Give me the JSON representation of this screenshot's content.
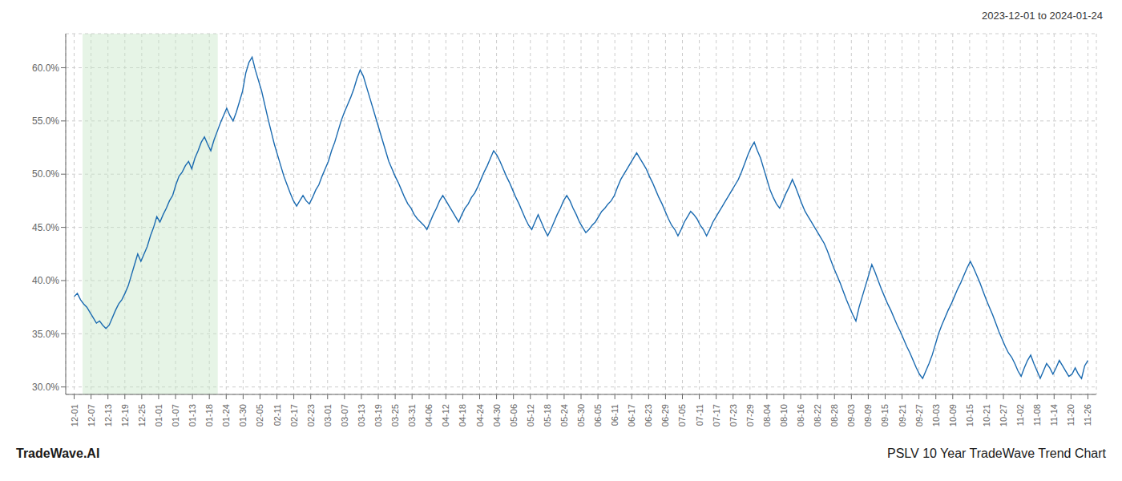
{
  "chart_data": {
    "type": "line",
    "title": "PSLV 10 Year TradeWave Trend Chart",
    "subtitle": "2023-12-01 to 2024-01-24",
    "annotations": [
      "TradeWave.AI"
    ],
    "color": "#1a6ab0",
    "grid": true,
    "shaded_range": {
      "start": "12-07",
      "end": "01-18",
      "color": "#c8e6c8"
    },
    "xlim": [
      -0.5,
      60.5
    ],
    "xticks": [
      {
        "value": 0,
        "label": "12-01"
      },
      {
        "value": 1,
        "label": "12-07"
      },
      {
        "value": 2,
        "label": "12-13"
      },
      {
        "value": 3,
        "label": "12-19"
      },
      {
        "value": 4,
        "label": "12-25"
      },
      {
        "value": 5,
        "label": "01-01"
      },
      {
        "value": 6,
        "label": "01-07"
      },
      {
        "value": 7,
        "label": "01-13"
      },
      {
        "value": 8,
        "label": "01-18"
      },
      {
        "value": 9,
        "label": "01-24"
      },
      {
        "value": 10,
        "label": "01-30"
      },
      {
        "value": 11,
        "label": "02-05"
      },
      {
        "value": 12,
        "label": "02-11"
      },
      {
        "value": 13,
        "label": "02-17"
      },
      {
        "value": 14,
        "label": "02-23"
      },
      {
        "value": 15,
        "label": "03-01"
      },
      {
        "value": 16,
        "label": "03-07"
      },
      {
        "value": 17,
        "label": "03-13"
      },
      {
        "value": 18,
        "label": "03-19"
      },
      {
        "value": 19,
        "label": "03-25"
      },
      {
        "value": 20,
        "label": "03-31"
      },
      {
        "value": 21,
        "label": "04-06"
      },
      {
        "value": 22,
        "label": "04-12"
      },
      {
        "value": 23,
        "label": "04-18"
      },
      {
        "value": 24,
        "label": "04-24"
      },
      {
        "value": 25,
        "label": "04-30"
      },
      {
        "value": 26,
        "label": "05-06"
      },
      {
        "value": 27,
        "label": "05-12"
      },
      {
        "value": 28,
        "label": "05-18"
      },
      {
        "value": 29,
        "label": "05-24"
      },
      {
        "value": 30,
        "label": "05-30"
      },
      {
        "value": 31,
        "label": "06-05"
      },
      {
        "value": 32,
        "label": "06-11"
      },
      {
        "value": 33,
        "label": "06-17"
      },
      {
        "value": 34,
        "label": "06-23"
      },
      {
        "value": 35,
        "label": "06-29"
      },
      {
        "value": 36,
        "label": "07-05"
      },
      {
        "value": 37,
        "label": "07-11"
      },
      {
        "value": 38,
        "label": "07-17"
      },
      {
        "value": 39,
        "label": "07-23"
      },
      {
        "value": 40,
        "label": "07-29"
      },
      {
        "value": 41,
        "label": "08-04"
      },
      {
        "value": 42,
        "label": "08-10"
      },
      {
        "value": 43,
        "label": "08-16"
      },
      {
        "value": 44,
        "label": "08-22"
      },
      {
        "value": 45,
        "label": "08-28"
      },
      {
        "value": 46,
        "label": "09-03"
      },
      {
        "value": 47,
        "label": "09-09"
      },
      {
        "value": 48,
        "label": "09-15"
      },
      {
        "value": 49,
        "label": "09-21"
      },
      {
        "value": 50,
        "label": "09-27"
      },
      {
        "value": 51,
        "label": "10-03"
      },
      {
        "value": 52,
        "label": "10-09"
      },
      {
        "value": 53,
        "label": "10-15"
      },
      {
        "value": 54,
        "label": "10-21"
      },
      {
        "value": 55,
        "label": "10-27"
      },
      {
        "value": 56,
        "label": "11-02"
      },
      {
        "value": 57,
        "label": "11-08"
      },
      {
        "value": 58,
        "label": "11-14"
      },
      {
        "value": 59,
        "label": "11-20"
      },
      {
        "value": 60,
        "label": "11-26"
      }
    ],
    "ylim": [
      0.293,
      0.632
    ],
    "yticks": [
      {
        "value": 0.3,
        "label": "30.0%"
      },
      {
        "value": 0.35,
        "label": "35.0%"
      },
      {
        "value": 0.4,
        "label": "40.0%"
      },
      {
        "value": 0.45,
        "label": "45.0%"
      },
      {
        "value": 0.5,
        "label": "50.0%"
      },
      {
        "value": 0.55,
        "label": "55.0%"
      },
      {
        "value": 0.6,
        "label": "60.0%"
      }
    ],
    "values": [
      0.385,
      0.388,
      0.382,
      0.378,
      0.375,
      0.37,
      0.365,
      0.36,
      0.362,
      0.358,
      0.355,
      0.358,
      0.365,
      0.372,
      0.378,
      0.382,
      0.388,
      0.395,
      0.405,
      0.415,
      0.425,
      0.418,
      0.425,
      0.432,
      0.442,
      0.45,
      0.46,
      0.455,
      0.462,
      0.468,
      0.475,
      0.48,
      0.49,
      0.498,
      0.502,
      0.508,
      0.512,
      0.505,
      0.515,
      0.522,
      0.53,
      0.535,
      0.528,
      0.522,
      0.532,
      0.54,
      0.548,
      0.555,
      0.562,
      0.555,
      0.55,
      0.558,
      0.568,
      0.578,
      0.595,
      0.605,
      0.61,
      0.598,
      0.588,
      0.578,
      0.565,
      0.552,
      0.54,
      0.528,
      0.518,
      0.508,
      0.498,
      0.49,
      0.482,
      0.475,
      0.47,
      0.475,
      0.48,
      0.475,
      0.472,
      0.478,
      0.485,
      0.49,
      0.498,
      0.505,
      0.512,
      0.522,
      0.53,
      0.54,
      0.55,
      0.558,
      0.565,
      0.572,
      0.58,
      0.59,
      0.598,
      0.592,
      0.582,
      0.572,
      0.562,
      0.552,
      0.542,
      0.532,
      0.522,
      0.512,
      0.505,
      0.498,
      0.492,
      0.485,
      0.478,
      0.472,
      0.468,
      0.462,
      0.458,
      0.455,
      0.452,
      0.448,
      0.455,
      0.462,
      0.468,
      0.475,
      0.48,
      0.475,
      0.47,
      0.465,
      0.46,
      0.455,
      0.462,
      0.468,
      0.472,
      0.478,
      0.482,
      0.488,
      0.495,
      0.502,
      0.508,
      0.515,
      0.522,
      0.518,
      0.512,
      0.505,
      0.498,
      0.492,
      0.485,
      0.478,
      0.472,
      0.465,
      0.458,
      0.452,
      0.448,
      0.455,
      0.462,
      0.455,
      0.448,
      0.442,
      0.448,
      0.455,
      0.462,
      0.468,
      0.475,
      0.48,
      0.475,
      0.468,
      0.462,
      0.455,
      0.45,
      0.445,
      0.448,
      0.452,
      0.455,
      0.46,
      0.465,
      0.468,
      0.472,
      0.475,
      0.48,
      0.488,
      0.495,
      0.5,
      0.505,
      0.51,
      0.515,
      0.52,
      0.515,
      0.51,
      0.505,
      0.498,
      0.492,
      0.485,
      0.478,
      0.472,
      0.465,
      0.458,
      0.452,
      0.448,
      0.442,
      0.448,
      0.455,
      0.46,
      0.465,
      0.462,
      0.458,
      0.452,
      0.448,
      0.442,
      0.448,
      0.455,
      0.46,
      0.465,
      0.47,
      0.475,
      0.48,
      0.485,
      0.49,
      0.495,
      0.502,
      0.51,
      0.518,
      0.525,
      0.53,
      0.522,
      0.515,
      0.505,
      0.495,
      0.485,
      0.478,
      0.472,
      0.468,
      0.475,
      0.482,
      0.488,
      0.495,
      0.488,
      0.48,
      0.472,
      0.465,
      0.46,
      0.455,
      0.45,
      0.445,
      0.44,
      0.435,
      0.428,
      0.42,
      0.412,
      0.405,
      0.398,
      0.39,
      0.382,
      0.375,
      0.368,
      0.362,
      0.375,
      0.385,
      0.395,
      0.405,
      0.415,
      0.408,
      0.4,
      0.392,
      0.385,
      0.378,
      0.372,
      0.365,
      0.358,
      0.352,
      0.345,
      0.338,
      0.332,
      0.325,
      0.318,
      0.312,
      0.308,
      0.315,
      0.322,
      0.33,
      0.34,
      0.35,
      0.358,
      0.365,
      0.372,
      0.378,
      0.385,
      0.392,
      0.398,
      0.405,
      0.412,
      0.418,
      0.412,
      0.405,
      0.398,
      0.39,
      0.382,
      0.375,
      0.368,
      0.36,
      0.352,
      0.345,
      0.338,
      0.332,
      0.328,
      0.322,
      0.315,
      0.31,
      0.318,
      0.325,
      0.33,
      0.322,
      0.315,
      0.308,
      0.315,
      0.322,
      0.318,
      0.312,
      0.318,
      0.325,
      0.32,
      0.315,
      0.31,
      0.312,
      0.318,
      0.312,
      0.308,
      0.32,
      0.325
    ]
  }
}
